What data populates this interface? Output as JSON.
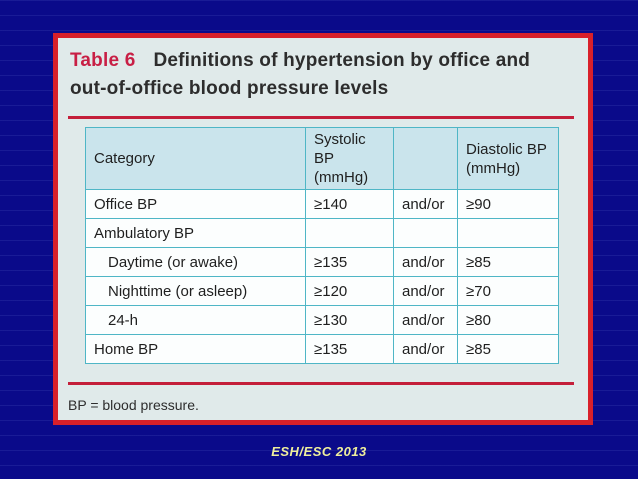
{
  "slide": {
    "credit": "ESH/ESC 2013"
  },
  "panel": {
    "title_label": "Table 6",
    "title_text": "Definitions of hypertension by office and out-of-office blood pressure levels",
    "footnote": "BP = blood pressure."
  },
  "table": {
    "columns": [
      "Category",
      "Systolic BP (mmHg)",
      "",
      "Diastolic BP (mmHg)"
    ],
    "rows": [
      {
        "category": "Office BP",
        "systolic": "≥140",
        "conj": "and/or",
        "diastolic": "≥90"
      },
      {
        "category": "Ambulatory BP",
        "systolic": "",
        "conj": "",
        "diastolic": ""
      },
      {
        "category": "Daytime (or awake)",
        "systolic": "≥135",
        "conj": "and/or",
        "diastolic": "≥85"
      },
      {
        "category": "Nighttime (or asleep)",
        "systolic": "≥120",
        "conj": "and/or",
        "diastolic": "≥70"
      },
      {
        "category": "24-h",
        "systolic": "≥130",
        "conj": "and/or",
        "diastolic": "≥80"
      },
      {
        "category": "Home BP",
        "systolic": "≥135",
        "conj": "and/or",
        "diastolic": "≥85"
      }
    ]
  },
  "colors": {
    "slide_background": "#0a0a8a",
    "panel_background": "#e0eaea",
    "panel_border_red": "#d8202a",
    "title_accent_red": "#c81f45",
    "rule_red": "#c41f3a",
    "table_border_teal": "#4fb6c6",
    "header_cell_blue": "#cae4ec",
    "body_cell_white": "#fcfefe",
    "credit_yellow": "#efef9c",
    "text_dark": "#2d2d2d"
  }
}
